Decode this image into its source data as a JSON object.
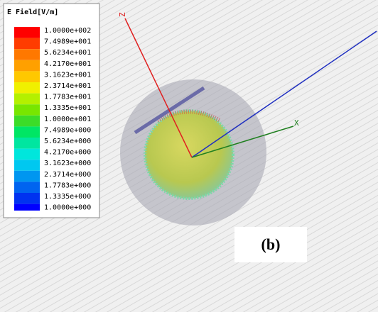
{
  "legend": {
    "title": "E Field[V/m]",
    "entries": [
      {
        "label": "1.0000e+002",
        "color": "#ff0000"
      },
      {
        "label": "7.4989e+001",
        "color": "#ff3c00"
      },
      {
        "label": "5.6234e+001",
        "color": "#ff7800"
      },
      {
        "label": "4.2170e+001",
        "color": "#ffa000"
      },
      {
        "label": "3.1623e+001",
        "color": "#ffc800"
      },
      {
        "label": "2.3714e+001",
        "color": "#f0f000"
      },
      {
        "label": "1.7783e+001",
        "color": "#b4f000"
      },
      {
        "label": "1.3335e+001",
        "color": "#78e600"
      },
      {
        "label": "1.0000e+001",
        "color": "#3cdc28"
      },
      {
        "label": "7.4989e+000",
        "color": "#00e664"
      },
      {
        "label": "5.6234e+000",
        "color": "#00e6a0"
      },
      {
        "label": "4.2170e+000",
        "color": "#00e6dc"
      },
      {
        "label": "3.1623e+000",
        "color": "#00c8f0"
      },
      {
        "label": "2.3714e+000",
        "color": "#0096f0"
      },
      {
        "label": "1.7783e+000",
        "color": "#0064f0"
      },
      {
        "label": "1.3335e+000",
        "color": "#0032f0"
      },
      {
        "label": "1.0000e+000",
        "color": "#0000ff"
      }
    ]
  },
  "axes": {
    "z": "Z",
    "x": "X"
  },
  "figure_label": "(b)"
}
